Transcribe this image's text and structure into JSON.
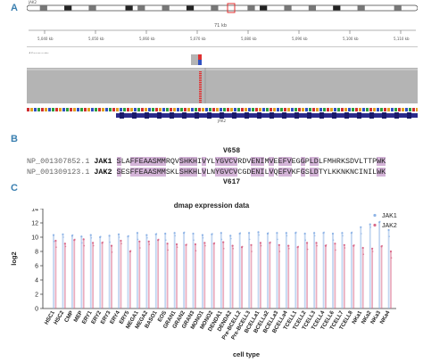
{
  "panels": {
    "a": "A",
    "b": "B",
    "c": "C"
  },
  "panel_a": {
    "chromosome_label": "JAK2",
    "scale_label": "71 kb",
    "track_label": "Alignments",
    "gene_label": "JAK2",
    "ruler_ticks": [
      "5,040 kb",
      "5,050 kb",
      "5,060 kb",
      "5,070 kb",
      "5,080 kb",
      "5,090 kb",
      "5,100 kb",
      "5,110 kb"
    ],
    "colors": {
      "variant_red": "#e03030",
      "variant_blue": "#3050c0",
      "reads": "#b4b4b4",
      "gene": "#2a2a8a"
    }
  },
  "panel_b": {
    "site_top": "V658",
    "site_bottom": "V617",
    "rows": [
      {
        "accession": "NP_001307852.1",
        "gene": "JAK1",
        "sequence": "SLAFFEAASMMRQVSHKHIVYLYGVCVRDVENIMVEEFVEGGPLDLFMHRKSDVLTTPWK"
      },
      {
        "accession": "NP_001309123.1",
        "gene": "JAK2",
        "sequence": "SESFFEAASMMSKLSHKHLVLNYGVCVCGDENILVQEFVKFGSLDTYLKKNKNCINILWK"
      }
    ],
    "highlight_color": "#d4b4d8"
  },
  "chart_data": {
    "type": "scatter",
    "title": "dmap expression data",
    "xlabel": "cell type",
    "ylabel": "log2",
    "ylim": [
      0,
      14
    ],
    "yticks": [
      0,
      2,
      4,
      6,
      8,
      10,
      12,
      14
    ],
    "grid": false,
    "legend_position": "top-right",
    "categories": [
      "HSC1",
      "HSC2",
      "CMP",
      "MEP",
      "ERY1",
      "ERY2",
      "ERY3",
      "ERY4",
      "ERY5",
      "MEGA1",
      "MEGA2",
      "BASO1",
      "EOS",
      "GRAN1",
      "GRAN2",
      "GRAN3",
      "MONO1",
      "MONO2",
      "DENDA1",
      "DENDA2",
      "Pre-BCELL2",
      "Pre-BCELL3",
      "BCELLa1",
      "BCELLa2",
      "BCELLa3",
      "BCELLa4",
      "TCELL1",
      "TCELL2",
      "TCELL3",
      "TCELL4",
      "TCELL6",
      "TCELL7",
      "TCELL8",
      "NKa1",
      "NKa2",
      "NKa3",
      "NKa4"
    ],
    "series": [
      {
        "name": "JAK1",
        "color": "#8fb4e6",
        "values": [
          10.3,
          10.4,
          10.2,
          10.1,
          10.3,
          10.0,
          10.2,
          10.4,
          10.1,
          10.6,
          10.3,
          10.4,
          10.5,
          10.6,
          10.6,
          10.5,
          10.3,
          10.4,
          10.6,
          10.2,
          10.5,
          10.6,
          10.7,
          10.5,
          10.6,
          10.6,
          10.6,
          10.5,
          10.6,
          10.6,
          10.5,
          10.6,
          10.6,
          11.4,
          11.8,
          12.1,
          11.0
        ]
      },
      {
        "name": "JAK2",
        "color": "#d86a8a",
        "values": [
          9.5,
          9.1,
          9.6,
          9.7,
          9.2,
          9.2,
          8.8,
          9.5,
          8.0,
          9.4,
          9.4,
          9.6,
          9.1,
          9.0,
          8.9,
          9.0,
          9.2,
          9.1,
          9.3,
          8.8,
          8.6,
          8.9,
          9.2,
          9.2,
          8.9,
          8.8,
          8.6,
          9.2,
          9.2,
          8.8,
          9.1,
          8.9,
          8.8,
          8.5,
          8.4,
          8.7,
          8.0
        ]
      }
    ]
  }
}
